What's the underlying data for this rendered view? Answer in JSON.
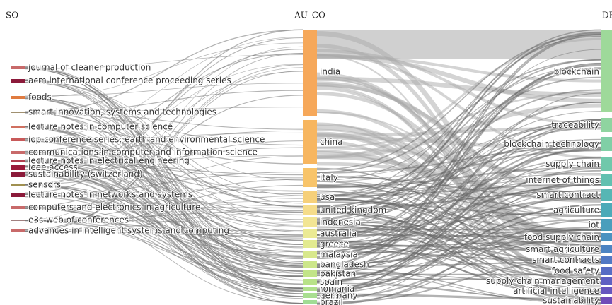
{
  "headers": [
    "SO",
    "AU_CO",
    "DE"
  ],
  "sources": [
    "journal of cleaner production",
    "acm international conference proceeding series",
    "foods",
    "smart innovation, systems and technologies",
    "lecture notes in computer science",
    "iop conference series: earth and environmental science",
    "communications in computer and information science",
    "lecture notes in electrical engineering",
    "ieee access",
    "sustainability (switzerland)",
    "sensors",
    "lecture notes in networks and systems",
    "computers and electronics in agriculture",
    "e3s web of conferences",
    "advances in intelligent systems and computing"
  ],
  "countries": [
    "india",
    "china",
    "italy",
    "usa",
    "united kingdom",
    "indonesia",
    "australia",
    "greece",
    "malaysia",
    "bangladesh",
    "pakistan",
    "spain",
    "romania",
    "germany",
    "brazil"
  ],
  "keywords": [
    "blockchain",
    "traceability",
    "blockchain technology",
    "supply chain",
    "internet of things",
    "smart contract",
    "agriculture",
    "iot",
    "food supply chain",
    "smart agriculture",
    "smart contracts",
    "food safety",
    "supply chain management",
    "artificial intelligence",
    "sustainability"
  ]
}
